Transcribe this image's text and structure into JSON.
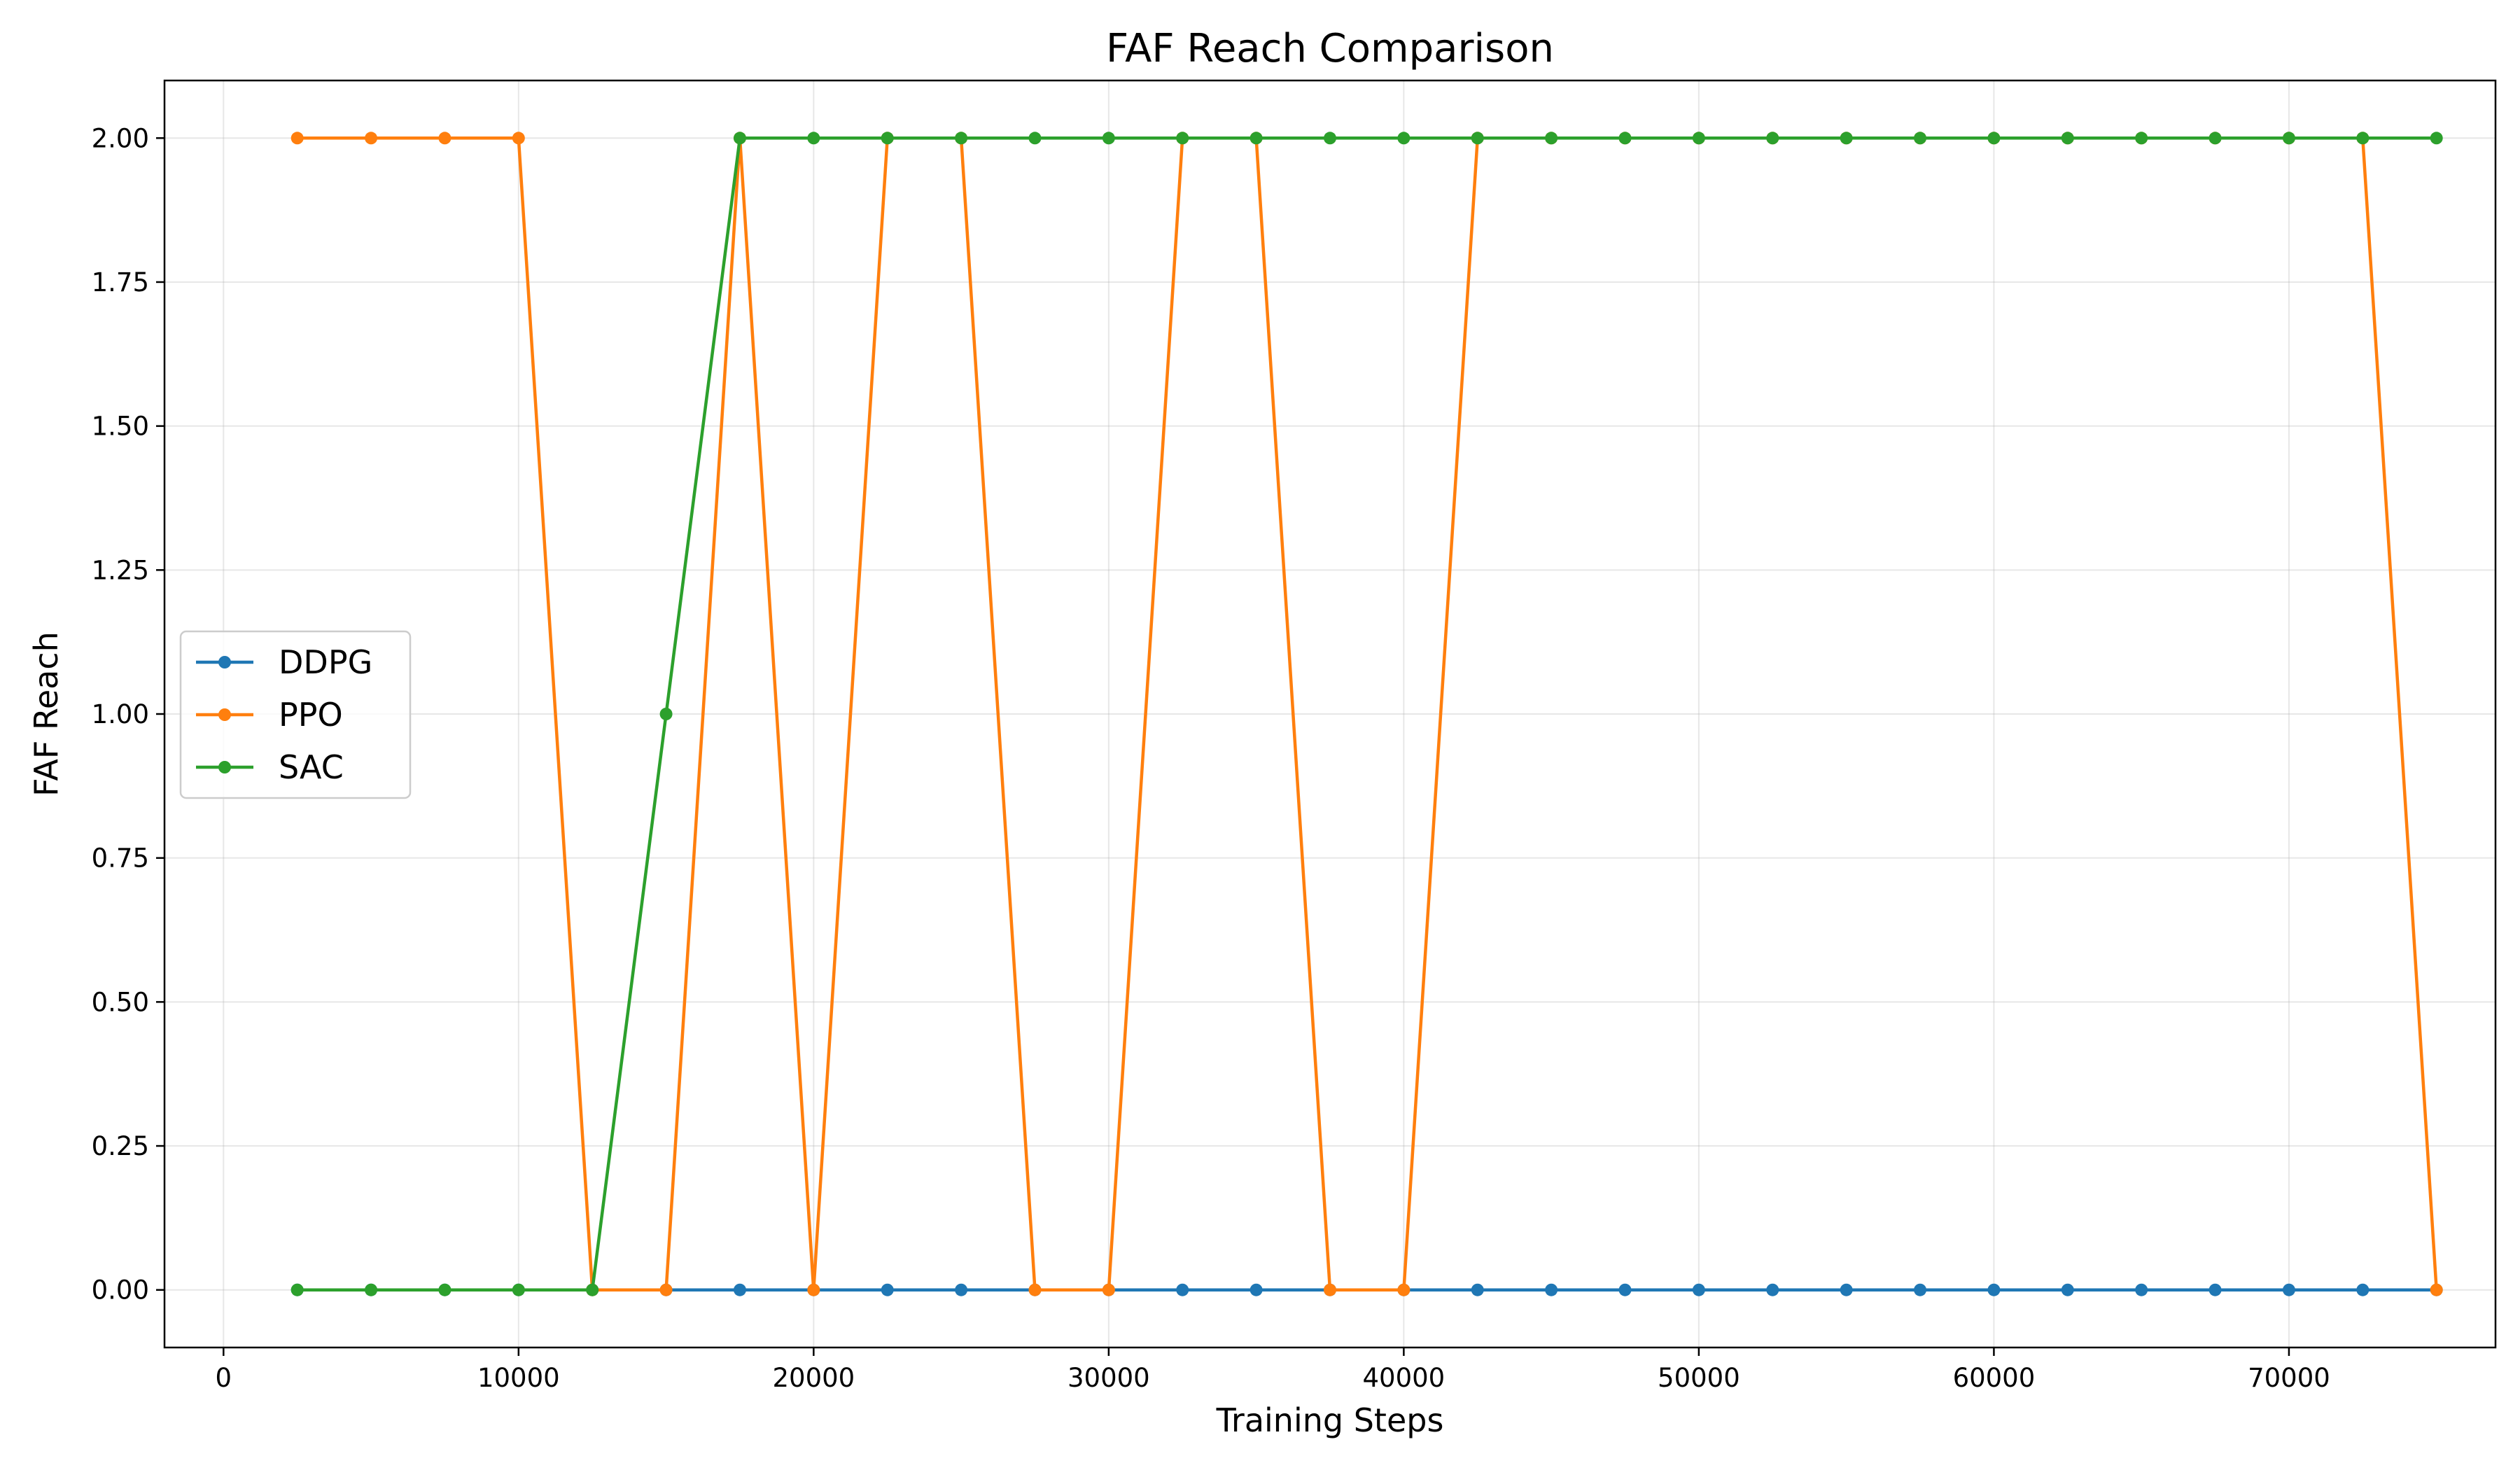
{
  "chart_data": {
    "type": "line",
    "title": "FAF Reach Comparison",
    "xlabel": "Training Steps",
    "ylabel": "FAF Reach",
    "xlim": [
      -2000,
      77000
    ],
    "ylim": [
      -0.1,
      2.1
    ],
    "xticks": [
      0,
      10000,
      20000,
      30000,
      40000,
      50000,
      60000,
      70000
    ],
    "xtick_labels": [
      "0",
      "10000",
      "20000",
      "30000",
      "40000",
      "50000",
      "60000",
      "70000"
    ],
    "yticks": [
      0,
      0.25,
      0.5,
      0.75,
      1.0,
      1.25,
      1.5,
      1.75,
      2.0
    ],
    "ytick_labels": [
      "0.00",
      "0.25",
      "0.50",
      "0.75",
      "1.00",
      "1.25",
      "1.50",
      "1.75",
      "2.00"
    ],
    "grid": true,
    "legend_position": "center-left",
    "x": [
      2500,
      5000,
      7500,
      10000,
      12500,
      15000,
      17500,
      20000,
      22500,
      25000,
      27500,
      30000,
      32500,
      35000,
      37500,
      40000,
      42500,
      45000,
      47500,
      50000,
      52500,
      55000,
      57500,
      60000,
      62500,
      65000,
      67500,
      70000,
      72500,
      75000
    ],
    "series": [
      {
        "name": "DDPG",
        "color": "#1f77b4",
        "values": [
          0,
          0,
          0,
          0,
          0,
          0,
          0,
          0,
          0,
          0,
          0,
          0,
          0,
          0,
          0,
          0,
          0,
          0,
          0,
          0,
          0,
          0,
          0,
          0,
          0,
          0,
          0,
          0,
          0,
          0
        ]
      },
      {
        "name": "PPO",
        "color": "#ff7f0e",
        "values": [
          2,
          2,
          2,
          2,
          0,
          0,
          2,
          0,
          2,
          2,
          0,
          0,
          2,
          2,
          0,
          0,
          2,
          2,
          2,
          2,
          2,
          2,
          2,
          2,
          2,
          2,
          2,
          2,
          2,
          0
        ]
      },
      {
        "name": "SAC",
        "color": "#2ca02c",
        "values": [
          0,
          0,
          0,
          0,
          0,
          1,
          2,
          2,
          2,
          2,
          2,
          2,
          2,
          2,
          2,
          2,
          2,
          2,
          2,
          2,
          2,
          2,
          2,
          2,
          2,
          2,
          2,
          2,
          2,
          2
        ]
      }
    ]
  }
}
